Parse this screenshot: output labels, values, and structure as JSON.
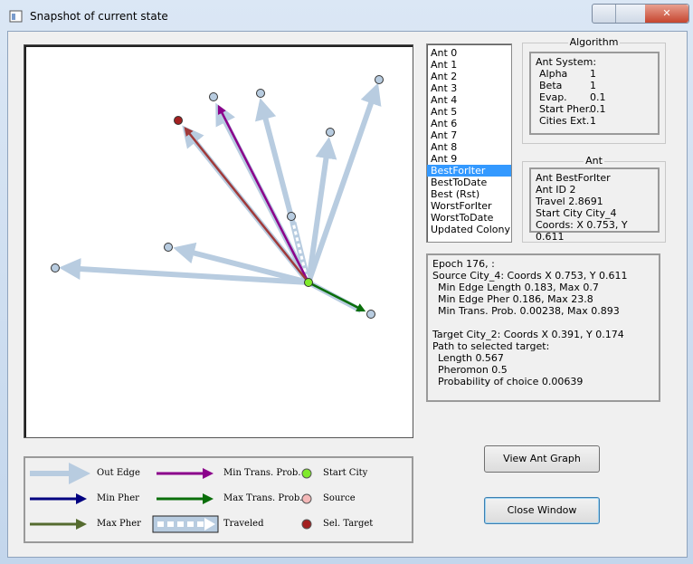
{
  "window": {
    "title": "Snapshot of current state"
  },
  "ant_list": [
    "Ant 0",
    "Ant 1",
    "Ant 2",
    "Ant 3",
    "Ant 4",
    "Ant 5",
    "Ant 6",
    "Ant 7",
    "Ant 8",
    "Ant 9",
    "BestForIter",
    "BestToDate",
    "Best (Rst)",
    "WorstForIter",
    "WorstToDate",
    "Updated Colony"
  ],
  "algorithm": {
    "title": "Algorithm",
    "header": "Ant System:",
    "params": [
      {
        "label": "Alpha",
        "value": "1"
      },
      {
        "label": "Beta",
        "value": "1"
      },
      {
        "label": "Evap.",
        "value": "0.1"
      },
      {
        "label": "Start Pher.",
        "value": "0.1"
      },
      {
        "label": "Cities Ext.",
        "value": "1"
      }
    ]
  },
  "ant": {
    "title": "Ant",
    "lines": [
      "Ant BestForIter",
      "Ant ID 2",
      "Travel 2.8691",
      "Start City City_4",
      "Coords: X 0.753, Y 0.611"
    ]
  },
  "info": {
    "epoch": "Epoch 176, :",
    "source": "Source City_4: Coords X 0.753, Y 0.611",
    "source_details": [
      "Min Edge Length 0.183, Max 0.7",
      "Min Edge Pher 0.186, Max 23.8",
      "Min Trans. Prob. 0.00238, Max 0.893"
    ],
    "target": "Target City_2: Coords X 0.391, Y 0.174",
    "path_header": "Path to selected target:",
    "path_details": [
      "Length 0.567",
      "Pheromon 0.5",
      "Probability of choice 0.00639"
    ]
  },
  "buttons": [
    "View Ant Graph",
    "Close Window"
  ],
  "legend": [
    "Out Edge",
    "Min Trans. Prob.",
    "Start City",
    "Min Pher",
    "Max Trans. Prob.",
    "Source",
    "Max Pher",
    "Traveled",
    "Sel. Target"
  ]
}
